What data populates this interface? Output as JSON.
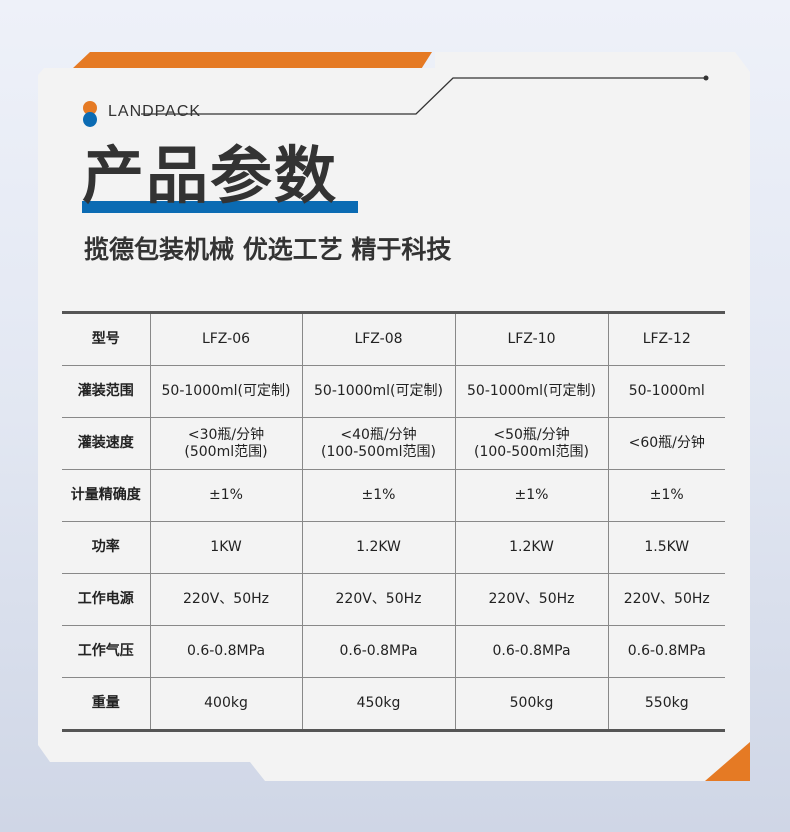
{
  "brand": {
    "name": "LANDPACK"
  },
  "title": "产品参数",
  "subtitle": "揽德包装机械  优选工艺  精于科技",
  "colors": {
    "orange": "#e57a24",
    "blue": "#0b6bb3"
  },
  "table": {
    "rows": [
      {
        "label": "型号",
        "cells": [
          "LFZ-06",
          "LFZ-08",
          "LFZ-10",
          "LFZ-12"
        ]
      },
      {
        "label": "灌装范围",
        "cells": [
          "50-1000ml(可定制)",
          "50-1000ml(可定制)",
          "50-1000ml(可定制)",
          "50-1000ml"
        ]
      },
      {
        "label": "灌装速度",
        "cells": [
          [
            "<30瓶/分钟",
            "(500ml范围)"
          ],
          [
            "<40瓶/分钟",
            "(100-500ml范围)"
          ],
          [
            "<50瓶/分钟",
            "(100-500ml范围)"
          ],
          [
            "<60瓶/分钟"
          ]
        ]
      },
      {
        "label": "计量精确度",
        "cells": [
          "±1%",
          "±1%",
          "±1%",
          "±1%"
        ]
      },
      {
        "label": "功率",
        "cells": [
          "1KW",
          "1.2KW",
          "1.2KW",
          "1.5KW"
        ]
      },
      {
        "label": "工作电源",
        "cells": [
          "220V、50Hz",
          "220V、50Hz",
          "220V、50Hz",
          "220V、50Hz"
        ]
      },
      {
        "label": "工作气压",
        "cells": [
          "0.6-0.8MPa",
          "0.6-0.8MPa",
          "0.6-0.8MPa",
          "0.6-0.8MPa"
        ]
      },
      {
        "label": "重量",
        "cells": [
          "400kg",
          "450kg",
          "500kg",
          "550kg"
        ]
      }
    ]
  }
}
